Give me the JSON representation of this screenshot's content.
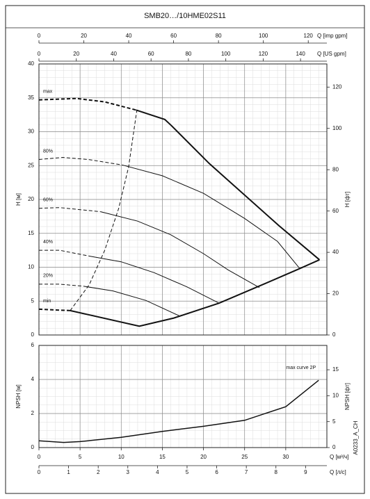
{
  "title": "SMB20…/10HME02S11",
  "code": "A0233_A_CH",
  "chart_data": [
    {
      "type": "line",
      "xlim": [
        0,
        35
      ],
      "xticks": [
        0,
        5,
        10,
        15,
        20,
        25,
        30,
        35
      ],
      "ylabel": "H [м]",
      "ylim": [
        0,
        40
      ],
      "yticks": [
        0,
        5,
        10,
        15,
        20,
        25,
        30,
        35,
        40
      ],
      "y2label": "H [фт]",
      "y2lim": [
        0,
        131.2
      ],
      "y2ticks": [
        0,
        20,
        40,
        60,
        80,
        100,
        120
      ],
      "grid": true,
      "minor_grid": {
        "x": 1,
        "y": 1
      },
      "top_axes": [
        {
          "label": "Q [imp gpm]",
          "lim": [
            0,
            128.3
          ],
          "ticks": [
            0,
            20,
            40,
            60,
            80,
            100,
            120
          ]
        },
        {
          "label": "Q [US gpm]",
          "lim": [
            0,
            154.1
          ],
          "ticks": [
            0,
            20,
            40,
            60,
            80,
            100,
            120,
            140
          ]
        }
      ],
      "series": [
        {
          "name": "max",
          "style": "dashed",
          "width": 2,
          "x": [
            0,
            4.6,
            8,
            11.8
          ],
          "values": [
            34.7,
            34.9,
            34.4,
            33.2
          ]
        },
        {
          "style": "solid",
          "width": 2,
          "x": [
            11.8,
            15.3,
            16.1,
            20.7,
            29.2,
            34.1
          ],
          "values": [
            33.2,
            31.8,
            30.9,
            25.3,
            16.1,
            11.1
          ]
        },
        {
          "style": "solid",
          "width": 2,
          "x": [
            3.8,
            12.2,
            16.4,
            21.9,
            27.5,
            31.7,
            34.1
          ],
          "values": [
            3.6,
            1.3,
            2.5,
            4.7,
            7.6,
            9.8,
            11.1
          ]
        },
        {
          "name": "min",
          "style": "dashed",
          "width": 2,
          "x": [
            0,
            3.8
          ],
          "values": [
            3.8,
            3.6
          ]
        },
        {
          "name": "80%",
          "style": "dashed",
          "width": 1,
          "x": [
            0,
            2.9,
            6,
            10.1
          ],
          "values": [
            25.9,
            26.2,
            25.9,
            25.1
          ]
        },
        {
          "style": "solid",
          "width": 1,
          "x": [
            10.1,
            15,
            20,
            25,
            29,
            31.7
          ],
          "values": [
            25.1,
            23.5,
            20.9,
            17.2,
            13.8,
            9.8
          ]
        },
        {
          "name": "60%",
          "style": "dashed",
          "width": 1,
          "x": [
            0,
            2.5,
            7.5
          ],
          "values": [
            18.7,
            18.8,
            18.2
          ]
        },
        {
          "style": "solid",
          "width": 1,
          "x": [
            7.5,
            12,
            16,
            20,
            23,
            26.8
          ],
          "values": [
            18.2,
            16.8,
            14.8,
            12,
            9.6,
            7
          ]
        },
        {
          "name": "40%",
          "style": "dashed",
          "width": 1,
          "x": [
            0,
            2.5,
            6.3
          ],
          "values": [
            12.5,
            12.5,
            11.6
          ]
        },
        {
          "style": "solid",
          "width": 1,
          "x": [
            6.3,
            10,
            14,
            18,
            21.9
          ],
          "values": [
            11.6,
            10.8,
            9.2,
            7.1,
            4.7
          ]
        },
        {
          "name": "20%",
          "style": "dashed",
          "width": 1,
          "x": [
            0,
            2.5,
            5.4
          ],
          "values": [
            7.5,
            7.5,
            7.2
          ]
        },
        {
          "style": "solid",
          "width": 1,
          "x": [
            5.4,
            9,
            13,
            17.1
          ],
          "values": [
            7.2,
            6.5,
            5.1,
            2.8
          ]
        },
        {
          "style": "dashed",
          "width": 1,
          "x": [
            3.8,
            6.1,
            8,
            9.7,
            10.9,
            11.9
          ],
          "values": [
            3.6,
            7.4,
            12.5,
            18.7,
            24.8,
            33.2
          ]
        }
      ]
    },
    {
      "type": "line",
      "xlabel": "Q [м³/ч]",
      "xlim": [
        0,
        35
      ],
      "xticks": [
        0,
        5,
        10,
        15,
        20,
        25,
        30
      ],
      "ylabel": "NPSH [м]",
      "ylim": [
        0,
        6
      ],
      "yticks": [
        0,
        2,
        4,
        6
      ],
      "y2label": "NPSH [фт]",
      "y2lim": [
        0,
        19.7
      ],
      "y2ticks": [
        0,
        5,
        10,
        15
      ],
      "grid": true,
      "minor_grid": {
        "x": 1,
        "y": 0.5
      },
      "bottom_axes": [
        {
          "label": "Q [л/с]",
          "lim": [
            0,
            9.72
          ],
          "ticks": [
            0,
            1,
            2,
            3,
            4,
            5,
            6,
            7,
            8,
            9
          ]
        }
      ],
      "series": [
        {
          "name": "max curve 2P",
          "style": "solid",
          "width": 1.5,
          "x": [
            0,
            3,
            5,
            10,
            15,
            20,
            25,
            30,
            34
          ],
          "values": [
            0.4,
            0.3,
            0.35,
            0.6,
            0.95,
            1.25,
            1.6,
            2.4,
            3.95
          ]
        }
      ]
    }
  ]
}
